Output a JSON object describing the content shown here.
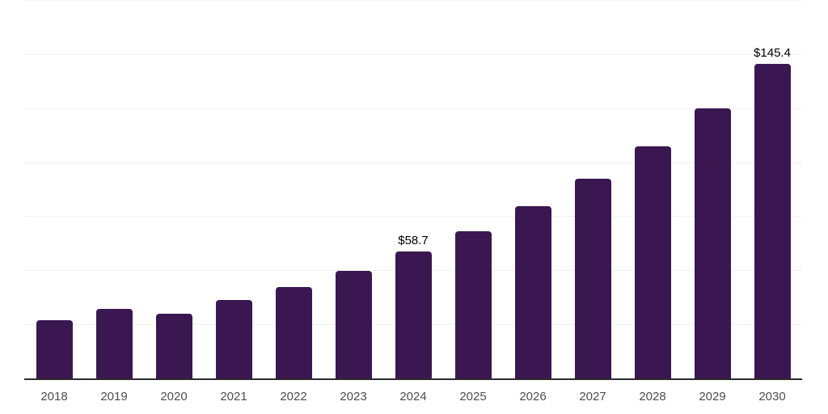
{
  "chart_data": {
    "type": "bar",
    "categories": [
      "2018",
      "2019",
      "2020",
      "2021",
      "2022",
      "2023",
      "2024",
      "2025",
      "2026",
      "2027",
      "2028",
      "2029",
      "2030"
    ],
    "values": [
      27.0,
      32.2,
      29.9,
      36.3,
      42.3,
      49.9,
      58.7,
      68.1,
      79.7,
      92.4,
      107.3,
      124.9,
      145.4
    ],
    "data_labels": [
      "",
      "",
      "",
      "",
      "",
      "",
      "$58.7",
      "",
      "",
      "",
      "",
      "",
      "$145.4"
    ],
    "title": "",
    "xlabel": "",
    "ylabel": "",
    "ylim": [
      0,
      175
    ],
    "gridline_step": 25,
    "grid_on": true,
    "legend": "none",
    "colors": {
      "bar": "#3a1751",
      "gridline": "#f0f0f0",
      "axis_line": "#2b2b2b",
      "x_tick_label": "#4d4d4d",
      "data_label": "#000000",
      "background": "#ffffff"
    }
  }
}
